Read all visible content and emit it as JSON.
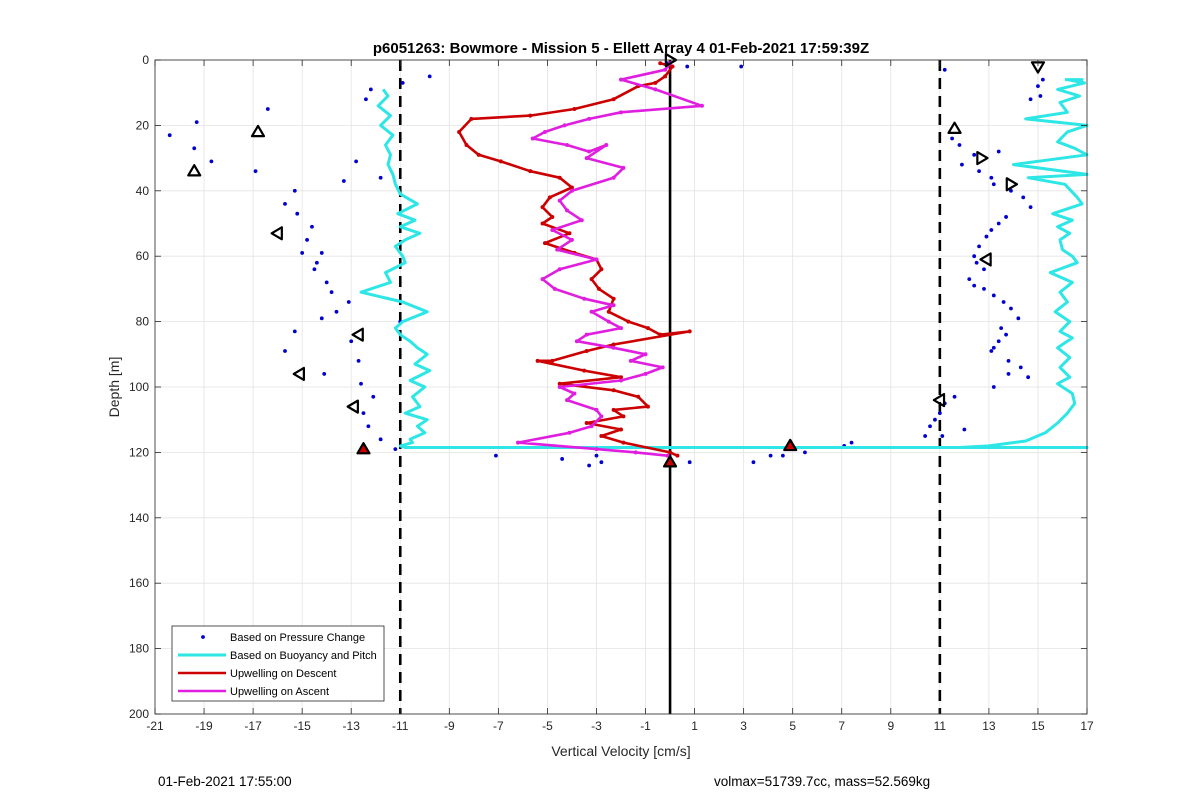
{
  "footer": {
    "left_text": "01-Feb-2021 17:55:00",
    "right_text": "volmax=51739.7cc, mass=52.569kg"
  },
  "colors": {
    "pressure": "#0000d0",
    "buoyancy": "#2ee6e6",
    "descent": "#cc0000",
    "ascent": "#e01ee0",
    "markers": "#000000"
  },
  "chart_data": {
    "type": "line",
    "title": "p6051263: Bowmore - Mission 5 - Ellett Array 4 01-Feb-2021 17:59:39Z",
    "xlabel": "Vertical Velocity [cm/s]",
    "ylabel": "Depth [m]",
    "xlim": [
      -21,
      17
    ],
    "ylim": [
      0,
      200
    ],
    "y_reversed": true,
    "grid": true,
    "legend_position": "bottom-left",
    "xticks": [
      -21,
      -19,
      -17,
      -15,
      -13,
      -11,
      -9,
      -7,
      -5,
      -3,
      -1,
      1,
      3,
      5,
      7,
      9,
      11,
      13,
      15,
      17
    ],
    "yticks": [
      0,
      20,
      40,
      60,
      80,
      100,
      120,
      140,
      160,
      180,
      200
    ],
    "x_tick_labels": [
      "-21",
      "-19",
      "-17",
      "-15",
      "-13",
      "-11",
      "-9",
      "-7",
      "-5",
      "-3",
      "-1",
      "1",
      "3",
      "5",
      "7",
      "9",
      "11",
      "13",
      "15",
      "17"
    ],
    "y_tick_labels": [
      "0",
      "20",
      "40",
      "60",
      "80",
      "100",
      "120",
      "140",
      "160",
      "180",
      "200"
    ],
    "vertical_lines": [
      {
        "x": -11,
        "style": "dashed"
      },
      {
        "x": 0,
        "style": "solid"
      },
      {
        "x": 11,
        "style": "dashed"
      }
    ],
    "series": [
      {
        "name": "Based on Pressure Change",
        "kind": "scatter",
        "x": [
          -20.4,
          -19.3,
          -19.4,
          -18.7,
          -16.9,
          -16.4,
          -15.3,
          -15.7,
          -15.2,
          -14.6,
          -14.8,
          -15.0,
          -14.2,
          -14.4,
          -14.5,
          -14.0,
          -13.8,
          -13.1,
          -13.6,
          -14.2,
          -15.3,
          -15.7,
          -13.0,
          -12.7,
          -14.1,
          -12.6,
          -12.1,
          -12.5,
          -12.3,
          -11.8,
          -11.2,
          -11.0,
          -10.9,
          -9.8,
          -12.4,
          -12.2,
          -12.8,
          -11.8,
          -13.3,
          -3.0,
          -3.3,
          -2.8,
          -4.4,
          -7.1,
          0.7,
          0.8,
          2.9,
          -0.1,
          3.4,
          4.1,
          4.6,
          5.5,
          7.1,
          7.4,
          11.2,
          11.5,
          11.8,
          12.4,
          11.9,
          12.6,
          13.1,
          13.4,
          13.2,
          13.9,
          14.4,
          14.7,
          13.7,
          13.4,
          13.1,
          12.9,
          12.6,
          12.4,
          12.5,
          12.8,
          12.2,
          12.4,
          12.8,
          13.2,
          13.6,
          13.9,
          14.2,
          13.5,
          13.7,
          13.4,
          13.2,
          13.1,
          13.8,
          14.3,
          13.8,
          14.6,
          13.2,
          11.6,
          11.2,
          11.0,
          10.8,
          10.6,
          10.4,
          12.0,
          11.1,
          15.2,
          15.0,
          15.1,
          14.7
        ],
        "y": [
          23,
          19,
          27,
          31,
          34,
          15,
          40,
          44,
          47,
          51,
          55,
          59,
          59,
          62,
          64,
          68,
          71,
          74,
          77,
          79,
          83,
          89,
          86,
          92,
          96,
          99,
          103,
          108,
          112,
          116,
          119,
          80,
          7,
          5,
          12,
          9,
          31,
          36,
          37,
          121,
          124,
          123,
          122,
          121,
          2,
          123,
          2,
          1,
          123,
          121,
          121,
          120,
          118,
          117,
          3,
          24,
          26,
          29,
          32,
          34,
          36,
          28,
          38,
          40,
          42,
          45,
          48,
          50,
          52,
          54,
          57,
          60,
          62,
          64,
          67,
          69,
          70,
          72,
          74,
          76,
          79,
          82,
          84,
          86,
          88,
          89,
          92,
          94,
          96,
          97,
          100,
          103,
          105,
          108,
          110,
          112,
          115,
          113,
          115,
          6,
          8,
          11,
          12
        ]
      },
      {
        "name": "Based on Buoyancy and Pitch",
        "kind": "line",
        "x": [
          -11.7,
          -11.5,
          -11.9,
          -11.4,
          -11.8,
          -11.3,
          -11.6,
          -11.4,
          -11.5,
          -11.3,
          -11.2,
          -11.0,
          -10.3,
          -11.1,
          -10.4,
          -11.0,
          -10.2,
          -10.8,
          -11.2,
          -10.9,
          -10.8,
          -11.6,
          -11.4,
          -12.6,
          -10.9,
          -9.9,
          -10.9,
          -11.2,
          -11.0,
          -10.6,
          -10.3,
          -9.9,
          -10.4,
          -9.8,
          -10.6,
          -10.0,
          -10.5,
          -10.2,
          -10.8,
          -9.9,
          -10.3,
          -10.0,
          -10.6,
          -10.5,
          -11.0,
          -10.8,
          -10.6,
          -10.0,
          -10.0,
          15.0,
          3.0,
          -0.5,
          17.0,
          11.8,
          13.0,
          14.5,
          15.3,
          15.8,
          16.2,
          16.5,
          16.4,
          15.8,
          16.3,
          15.9,
          16.3,
          15.8,
          16.4,
          15.9,
          16.3,
          15.7,
          16.2,
          15.9,
          16.4,
          15.5,
          16.6,
          16.4,
          16.0,
          15.9,
          16.3,
          15.8,
          16.4,
          15.6,
          16.8,
          16.6,
          16.1,
          14.6,
          17.0,
          14.0,
          17.0,
          16.5,
          15.8,
          15.8,
          16.2,
          17.0,
          14.5,
          16.2,
          15.9,
          16.7,
          15.8,
          16.9,
          16.2,
          16.8,
          16.1
        ],
        "y": [
          9,
          11,
          14,
          17,
          20,
          23,
          26,
          29,
          32,
          35,
          38,
          41,
          44,
          47,
          49,
          51,
          53,
          55,
          57,
          60,
          62,
          65,
          68,
          71,
          74,
          77,
          80,
          82,
          84,
          86,
          88,
          90,
          93,
          95,
          98,
          100,
          103,
          106,
          108,
          110,
          112,
          114,
          116,
          117,
          118,
          118.5,
          118.5,
          118.5,
          118.5,
          118.5,
          118.5,
          118.5,
          118.5,
          118.5,
          118,
          116.5,
          114,
          111,
          108,
          105,
          102,
          99,
          97,
          94,
          91,
          88,
          85,
          83,
          80,
          77,
          74,
          71,
          68,
          65,
          62,
          60,
          58,
          55,
          53,
          51,
          49,
          47,
          44,
          42,
          38,
          36,
          35,
          32,
          29,
          27,
          25,
          25,
          22,
          20,
          18,
          16,
          13,
          11,
          9,
          7,
          6,
          6,
          6
        ]
      },
      {
        "name": "Upwelling on Descent",
        "kind": "line",
        "x": [
          -0.4,
          0.1,
          -0.2,
          -0.6,
          -1.3,
          -2.3,
          -3.9,
          -5.7,
          -8.1,
          -8.6,
          -8.3,
          -7.8,
          -6.9,
          -5.7,
          -4.5,
          -4.0,
          -4.9,
          -5.2,
          -4.8,
          -5.2,
          -4.1,
          -5.1,
          -3.9,
          -3.0,
          -2.8,
          -3.2,
          -2.9,
          -2.3,
          -2.5,
          -1.7,
          -0.9,
          -0.4,
          0.8,
          -2.3,
          -3.4,
          -4.8,
          -5.4,
          -3.5,
          -2.0,
          -4.5,
          -2.3,
          -1.3,
          -0.9,
          -2.3,
          -1.9,
          -3.4,
          -2.0,
          -2.8,
          -1.9,
          0.0,
          0.3
        ],
        "y": [
          1,
          2,
          5,
          7,
          8,
          12,
          15,
          17,
          18,
          22,
          26,
          29,
          31,
          34,
          36,
          39,
          42,
          45,
          48,
          50,
          53,
          56,
          59,
          61,
          64,
          67,
          70,
          73,
          77,
          80,
          82,
          84,
          83,
          87,
          89,
          92,
          92,
          95,
          97,
          99,
          101,
          103,
          106,
          107,
          109,
          111,
          113,
          115,
          117,
          120,
          121
        ]
      },
      {
        "name": "Upwelling on Ascent",
        "kind": "line",
        "x": [
          0.0,
          -0.2,
          -2.0,
          -0.6,
          1.3,
          -2.0,
          -3.3,
          -4.3,
          -5.1,
          -5.6,
          -4.2,
          -3.3,
          -2.6,
          -3.4,
          -1.9,
          -2.3,
          -4.0,
          -4.5,
          -4.2,
          -3.6,
          -4.8,
          -4.0,
          -4.6,
          -3.0,
          -4.5,
          -5.2,
          -4.7,
          -3.5,
          -2.3,
          -3.2,
          -2.5,
          -2.0,
          -3.4,
          -3.8,
          -2.3,
          -1.0,
          -1.6,
          -0.3,
          -1.0,
          -2.0,
          -4.5,
          -3.9,
          -4.2,
          -3.0,
          -2.8,
          -3.2,
          -4.1,
          -6.2,
          -3.0,
          -1.4,
          -0.1
        ],
        "y": [
          1,
          3,
          6,
          9,
          14,
          16,
          18,
          20,
          22,
          24,
          26,
          28,
          26,
          30,
          33,
          36,
          40,
          43,
          46,
          49,
          52,
          55,
          58,
          61,
          64,
          67,
          70,
          73,
          75,
          77,
          80,
          82,
          84,
          86,
          88,
          90,
          92,
          94,
          96,
          98,
          100,
          102,
          104,
          107,
          109,
          112,
          114,
          117,
          119,
          120,
          121
        ]
      }
    ],
    "markers": [
      {
        "x": -16.8,
        "y": 22,
        "shape": "triangle-up"
      },
      {
        "x": -19.4,
        "y": 34,
        "shape": "triangle-up"
      },
      {
        "x": -16.0,
        "y": 53,
        "shape": "triangle-left"
      },
      {
        "x": -12.7,
        "y": 84,
        "shape": "triangle-left"
      },
      {
        "x": -15.1,
        "y": 96,
        "shape": "triangle-left"
      },
      {
        "x": -12.9,
        "y": 106,
        "shape": "triangle-left"
      },
      {
        "x": -12.5,
        "y": 119,
        "shape": "triangle-up-filled"
      },
      {
        "x": 0.0,
        "y": 0,
        "shape": "triangle-right"
      },
      {
        "x": 0.0,
        "y": 123,
        "shape": "triangle-up-filled"
      },
      {
        "x": 4.9,
        "y": 118,
        "shape": "triangle-up-filled"
      },
      {
        "x": 11.6,
        "y": 21,
        "shape": "triangle-up"
      },
      {
        "x": 12.7,
        "y": 30,
        "shape": "triangle-right"
      },
      {
        "x": 13.9,
        "y": 38,
        "shape": "triangle-right"
      },
      {
        "x": 12.9,
        "y": 61,
        "shape": "triangle-left"
      },
      {
        "x": 11.0,
        "y": 104,
        "shape": "triangle-left"
      },
      {
        "x": 15.0,
        "y": 2,
        "shape": "triangle-down"
      }
    ]
  }
}
